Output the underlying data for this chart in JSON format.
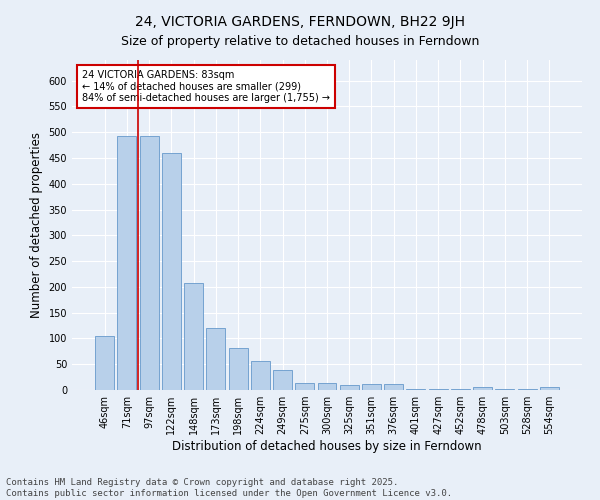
{
  "title": "24, VICTORIA GARDENS, FERNDOWN, BH22 9JH",
  "subtitle": "Size of property relative to detached houses in Ferndown",
  "xlabel": "Distribution of detached houses by size in Ferndown",
  "ylabel": "Number of detached properties",
  "categories": [
    "46sqm",
    "71sqm",
    "97sqm",
    "122sqm",
    "148sqm",
    "173sqm",
    "198sqm",
    "224sqm",
    "249sqm",
    "275sqm",
    "300sqm",
    "325sqm",
    "351sqm",
    "376sqm",
    "401sqm",
    "427sqm",
    "452sqm",
    "478sqm",
    "503sqm",
    "528sqm",
    "554sqm"
  ],
  "values": [
    105,
    493,
    493,
    460,
    207,
    120,
    82,
    57,
    38,
    14,
    14,
    10,
    12,
    12,
    2,
    2,
    2,
    5,
    2,
    2,
    5
  ],
  "bar_color": "#b8d0ea",
  "bar_edge_color": "#6699cc",
  "vline_x": 1.5,
  "vline_color": "#cc0000",
  "annotation_text": "24 VICTORIA GARDENS: 83sqm\n← 14% of detached houses are smaller (299)\n84% of semi-detached houses are larger (1,755) →",
  "annotation_box_color": "#cc0000",
  "annotation_fill": "white",
  "ylim": [
    0,
    640
  ],
  "yticks": [
    0,
    50,
    100,
    150,
    200,
    250,
    300,
    350,
    400,
    450,
    500,
    550,
    600
  ],
  "footer": "Contains HM Land Registry data © Crown copyright and database right 2025.\nContains public sector information licensed under the Open Government Licence v3.0.",
  "bg_color": "#e8eff8",
  "plot_bg_color": "#e8eff8",
  "title_fontsize": 10,
  "subtitle_fontsize": 9,
  "tick_fontsize": 7,
  "label_fontsize": 8.5,
  "footer_fontsize": 6.5
}
